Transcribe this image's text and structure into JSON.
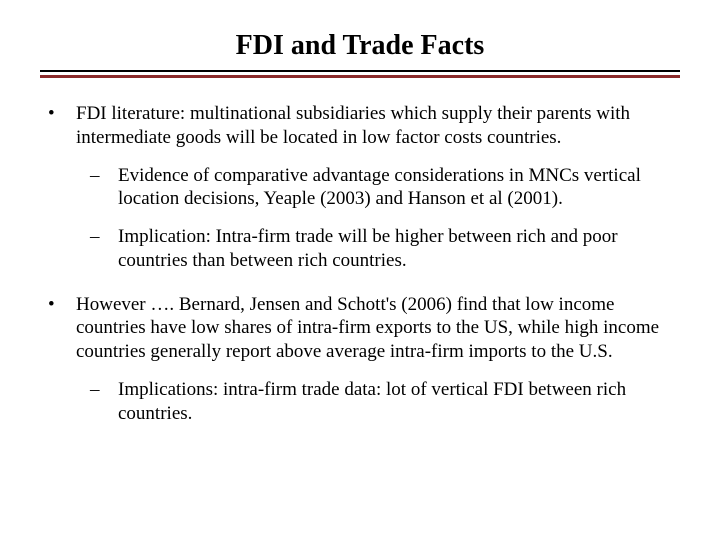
{
  "title": "FDI and Trade Facts",
  "rule_color": "#8b2a2a",
  "bullets": {
    "b1": "FDI literature: multinational subsidiaries which supply their parents with intermediate goods will be located in low factor costs countries.",
    "b1a": "Evidence of comparative advantage considerations in MNCs vertical location decisions, Yeaple (2003) and Hanson et al (2001).",
    "b1b": "Implication: Intra-firm trade will be higher between rich and poor countries than between rich countries.",
    "b2": "However …. Bernard, Jensen and Schott's (2006) find that low income countries have low shares of intra-firm exports to the US, while high income countries generally report above average intra-firm imports to the U.S.",
    "b2a": "Implications: intra-firm trade data: lot of vertical FDI between rich countries."
  },
  "markers": {
    "l1": "•",
    "l2": "–"
  },
  "title_fontsize": 28,
  "body_fontsize": 19
}
